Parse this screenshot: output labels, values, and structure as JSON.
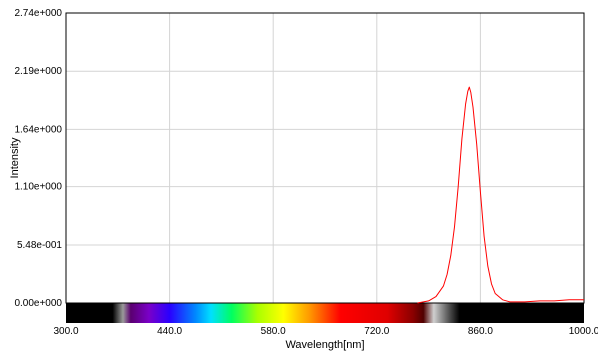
{
  "chart_data": {
    "type": "line",
    "title": "",
    "xlabel": "Wavelength[nm]",
    "ylabel": "Intensity",
    "xlim": [
      300,
      1000
    ],
    "ylim": [
      0,
      2.74
    ],
    "x_ticks": [
      300,
      440,
      580,
      720,
      860,
      1000
    ],
    "x_tick_labels": [
      "300.0",
      "440.0",
      "580.0",
      "720.0",
      "860.0",
      "1000.0"
    ],
    "y_ticks": [
      0,
      0.548,
      1.1,
      1.64,
      2.19,
      2.74
    ],
    "y_tick_labels": [
      "0.00e+000",
      "5.48e-001",
      "1.10e+000",
      "1.64e+000",
      "2.19e+000",
      "2.74e+000"
    ],
    "grid": true,
    "spectrum_bar": true,
    "series": [
      {
        "color": "#ff0000",
        "x": [
          775,
          790,
          800,
          810,
          815,
          820,
          825,
          830,
          835,
          840,
          843,
          845,
          847,
          850,
          855,
          860,
          865,
          870,
          875,
          880,
          890,
          900,
          920,
          940,
          960,
          980,
          1000
        ],
        "y": [
          0.0,
          0.02,
          0.06,
          0.16,
          0.27,
          0.45,
          0.72,
          1.1,
          1.55,
          1.88,
          2.0,
          2.04,
          1.99,
          1.85,
          1.5,
          1.05,
          0.63,
          0.35,
          0.18,
          0.09,
          0.03,
          0.01,
          0.01,
          0.02,
          0.02,
          0.03,
          0.03
        ]
      }
    ]
  }
}
